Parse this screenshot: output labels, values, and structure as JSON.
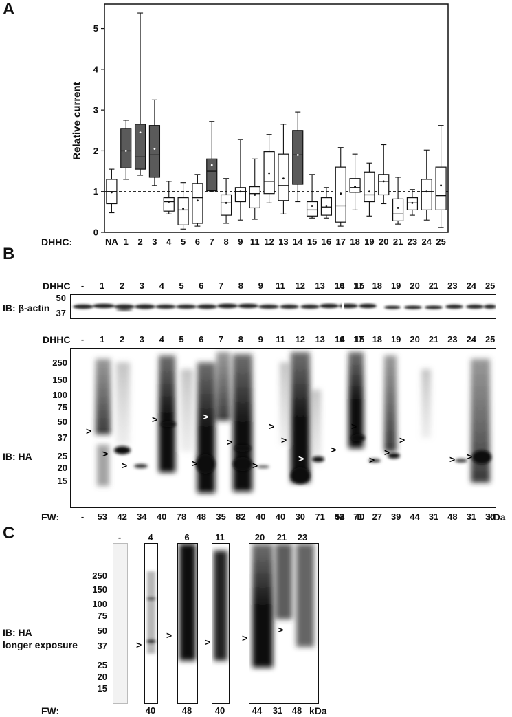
{
  "panel_a": {
    "label": "A",
    "ylabel": "Relative current",
    "xlabel_prefix": "DHHC:",
    "yticks": [
      "0",
      "1",
      "2",
      "3",
      "4",
      "5"
    ],
    "chart_data": {
      "type": "box",
      "title": "",
      "xlabel": "",
      "ylabel": "Relative current",
      "ylim": [
        0,
        5.6
      ],
      "reference_line": 1,
      "categories": [
        "NA",
        "1",
        "2",
        "3",
        "4",
        "5",
        "6",
        "7",
        "8",
        "9",
        "11",
        "12",
        "13",
        "14",
        "15",
        "16",
        "17",
        "18",
        "19",
        "20",
        "21",
        "23",
        "24",
        "25"
      ],
      "boxes": [
        {
          "cat": "NA",
          "wmin": 0.48,
          "q1": 0.7,
          "median": 1.0,
          "q3": 1.3,
          "wmax": 1.55,
          "mean": 0.98,
          "filled": false
        },
        {
          "cat": "1",
          "wmin": 1.3,
          "q1": 1.58,
          "median": 2.0,
          "q3": 2.55,
          "wmax": 2.75,
          "mean": 2.0,
          "filled": true
        },
        {
          "cat": "2",
          "wmin": 1.4,
          "q1": 1.55,
          "median": 1.85,
          "q3": 2.65,
          "wmax": 5.38,
          "mean": 2.45,
          "filled": true
        },
        {
          "cat": "3",
          "wmin": 1.15,
          "q1": 1.35,
          "median": 1.9,
          "q3": 2.62,
          "wmax": 3.25,
          "mean": 2.05,
          "filled": true
        },
        {
          "cat": "4",
          "wmin": 0.45,
          "q1": 0.52,
          "median": 0.75,
          "q3": 0.85,
          "wmax": 1.25,
          "mean": 0.75,
          "filled": false
        },
        {
          "cat": "5",
          "wmin": 0.08,
          "q1": 0.18,
          "median": 0.55,
          "q3": 0.85,
          "wmax": 1.22,
          "mean": 0.58,
          "filled": false
        },
        {
          "cat": "6",
          "wmin": 0.15,
          "q1": 0.22,
          "median": 0.85,
          "q3": 1.2,
          "wmax": 1.42,
          "mean": 0.78,
          "filled": false
        },
        {
          "cat": "7",
          "wmin": 1.0,
          "q1": 1.02,
          "median": 1.5,
          "q3": 1.8,
          "wmax": 2.72,
          "mean": 1.65,
          "filled": true
        },
        {
          "cat": "8",
          "wmin": 0.22,
          "q1": 0.42,
          "median": 0.72,
          "q3": 0.92,
          "wmax": 1.32,
          "mean": 0.72,
          "filled": false
        },
        {
          "cat": "9",
          "wmin": 0.3,
          "q1": 0.75,
          "median": 1.0,
          "q3": 1.1,
          "wmax": 2.28,
          "mean": 1.0,
          "filled": false
        },
        {
          "cat": "11",
          "wmin": 0.32,
          "q1": 0.6,
          "median": 0.95,
          "q3": 1.12,
          "wmax": 1.8,
          "mean": 0.92,
          "filled": false
        },
        {
          "cat": "12",
          "wmin": 0.72,
          "q1": 0.95,
          "median": 1.25,
          "q3": 1.98,
          "wmax": 2.4,
          "mean": 1.45,
          "filled": false
        },
        {
          "cat": "13",
          "wmin": 0.45,
          "q1": 0.78,
          "median": 1.15,
          "q3": 1.92,
          "wmax": 2.65,
          "mean": 1.32,
          "filled": false
        },
        {
          "cat": "14",
          "wmin": 0.75,
          "q1": 1.18,
          "median": 1.9,
          "q3": 2.5,
          "wmax": 2.95,
          "mean": 1.9,
          "filled": true
        },
        {
          "cat": "15",
          "wmin": 0.35,
          "q1": 0.4,
          "median": 0.55,
          "q3": 0.75,
          "wmax": 1.42,
          "mean": 0.65,
          "filled": false
        },
        {
          "cat": "16",
          "wmin": 0.35,
          "q1": 0.42,
          "median": 0.62,
          "q3": 0.85,
          "wmax": 1.1,
          "mean": 0.65,
          "filled": false
        },
        {
          "cat": "17",
          "wmin": 0.15,
          "q1": 0.25,
          "median": 0.65,
          "q3": 1.6,
          "wmax": 2.08,
          "mean": 0.95,
          "filled": false
        },
        {
          "cat": "18",
          "wmin": 0.55,
          "q1": 0.98,
          "median": 1.1,
          "q3": 1.32,
          "wmax": 1.92,
          "mean": 1.12,
          "filled": false
        },
        {
          "cat": "19",
          "wmin": 0.4,
          "q1": 0.75,
          "median": 0.92,
          "q3": 1.48,
          "wmax": 1.7,
          "mean": 1.0,
          "filled": false
        },
        {
          "cat": "20",
          "wmin": 0.7,
          "q1": 0.92,
          "median": 1.25,
          "q3": 1.42,
          "wmax": 2.15,
          "mean": 1.25,
          "filled": false
        },
        {
          "cat": "21",
          "wmin": 0.2,
          "q1": 0.28,
          "median": 0.45,
          "q3": 0.82,
          "wmax": 1.35,
          "mean": 0.6,
          "filled": false
        },
        {
          "cat": "23",
          "wmin": 0.42,
          "q1": 0.55,
          "median": 0.72,
          "q3": 0.85,
          "wmax": 1.05,
          "mean": 0.72,
          "filled": false
        },
        {
          "cat": "24",
          "wmin": 0.3,
          "q1": 0.55,
          "median": 1.0,
          "q3": 1.3,
          "wmax": 2.02,
          "mean": 1.0,
          "filled": false
        },
        {
          "cat": "25",
          "wmin": 0.12,
          "q1": 0.55,
          "median": 0.9,
          "q3": 1.6,
          "wmax": 2.62,
          "mean": 1.15,
          "filled": false
        }
      ]
    }
  },
  "panel_b": {
    "label": "B",
    "dhhc_label": "DHHC",
    "lanes_left": [
      "-",
      "1",
      "2",
      "3",
      "4",
      "5",
      "6",
      "7",
      "8",
      "9",
      "11",
      "12",
      "13",
      "14",
      "15"
    ],
    "lanes_right": [
      "16",
      "17",
      "18",
      "19",
      "20",
      "21",
      "23",
      "24",
      "25"
    ],
    "actin_label": "IB: β-actin",
    "actin_mw": [
      "50",
      "37"
    ],
    "ha_label": "IB: HA",
    "ha_mw": [
      "250",
      "150",
      "100",
      "75",
      "50",
      "37",
      "25",
      "20",
      "15"
    ],
    "fw_label": "FW:",
    "fw_left": [
      "-",
      "53",
      "42",
      "34",
      "40",
      "78",
      "48",
      "35",
      "82",
      "40",
      "40",
      "30",
      "71",
      "54",
      "40"
    ],
    "fw_right": [
      "42",
      "71",
      "27",
      "39",
      "44",
      "31",
      "48",
      "31",
      "30"
    ],
    "fw_unit": "kDa",
    "arrow_glyph": ">"
  },
  "panel_c": {
    "label": "C",
    "ha_label_1": "IB: HA",
    "ha_label_2": "longer exposure",
    "lanes": [
      "-",
      "4",
      "6",
      "11",
      "20",
      "21",
      "23"
    ],
    "mw": [
      "250",
      "150",
      "100",
      "75",
      "50",
      "37",
      "25",
      "20",
      "15"
    ],
    "fw_label": "FW:",
    "fw": [
      "40",
      "48",
      "40",
      "44",
      "31",
      "48"
    ],
    "fw_unit": "kDa"
  }
}
